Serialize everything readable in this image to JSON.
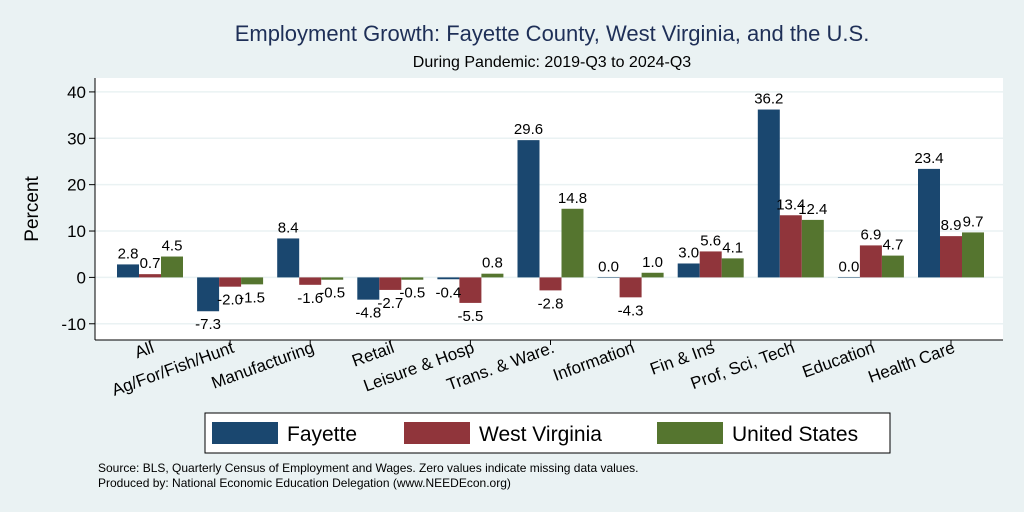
{
  "chart_data": {
    "type": "bar",
    "title": "Employment Growth: Fayette County, West Virginia, and the U.S.",
    "subtitle": "During Pandemic: 2019-Q3 to 2024-Q3",
    "ylabel": "Percent",
    "xlabel": "",
    "ylim": [
      -13.5,
      43
    ],
    "yticks": [
      -10,
      0,
      10,
      20,
      30,
      40
    ],
    "grid": true,
    "legend_position": "bottom",
    "categories": [
      "All",
      "Ag/For/Fish/Hunt",
      "Manufacturing",
      "Retail",
      "Leisure & Hosp",
      "Trans. & Ware.",
      "Information",
      "Fin & Ins",
      "Prof, Sci, Tech",
      "Education",
      "Health Care"
    ],
    "series": [
      {
        "name": "Fayette",
        "color": "#1a476f",
        "values": [
          2.8,
          -7.3,
          8.4,
          -4.8,
          -0.4,
          29.6,
          0.0,
          3.0,
          36.2,
          0.0,
          23.4
        ],
        "labels": [
          "2.8",
          "-7.3",
          "8.4",
          "-4.8",
          "-0.4",
          "29.6",
          "0.0",
          "3.0",
          "36.2",
          "0.0",
          "23.4"
        ]
      },
      {
        "name": "West Virginia",
        "color": "#90353b",
        "values": [
          0.7,
          -2.0,
          -1.6,
          -2.7,
          -5.5,
          -2.8,
          -4.3,
          5.6,
          13.4,
          6.9,
          8.9
        ],
        "labels": [
          "0.7",
          "-2.0",
          "-1.6",
          "-2.7",
          "-5.5",
          "-2.8",
          "-4.3",
          "5.6",
          "13.4",
          "6.9",
          "8.9"
        ]
      },
      {
        "name": "United States",
        "color": "#55752f",
        "values": [
          4.5,
          -1.5,
          -0.5,
          -0.5,
          0.8,
          14.8,
          1.0,
          4.1,
          12.4,
          4.7,
          9.7
        ],
        "labels": [
          "4.5",
          "-1.5",
          "-0.5",
          "-0.5",
          "0.8",
          "14.8",
          "1.0",
          "4.1",
          "12.4",
          "4.7",
          "9.7"
        ]
      }
    ],
    "notes": [
      "Source: BLS, Quarterly Census of Employment and Wages. Zero values indicate missing data values.",
      "Produced by: National Economic Education Delegation (www.NEEDEcon.org)"
    ]
  }
}
